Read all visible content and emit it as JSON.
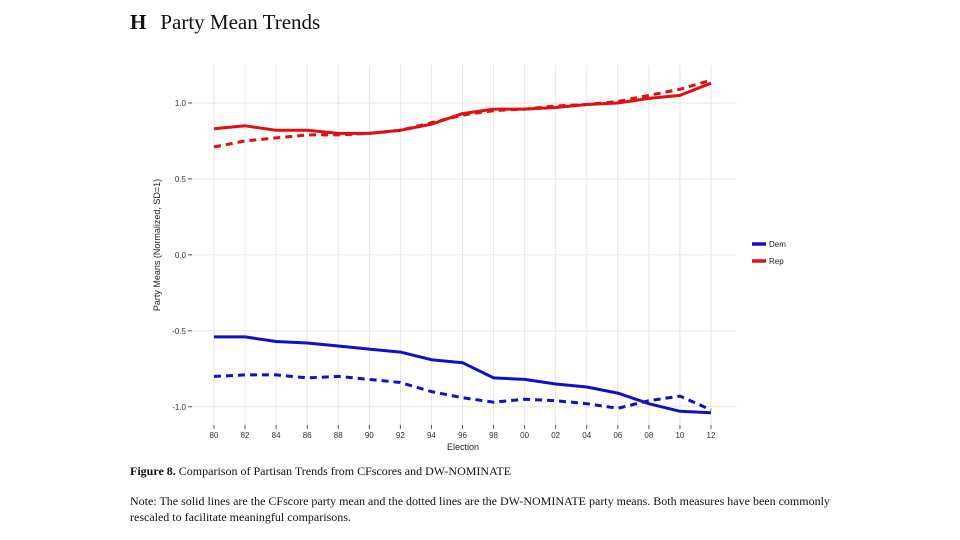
{
  "heading": {
    "letter": "H",
    "title": "Party Mean Trends"
  },
  "chart_data": {
    "type": "line",
    "title": "Party Mean Trends",
    "xlabel": "Election",
    "ylabel": "Party Means (Normalized, SD=1)",
    "categories": [
      "80",
      "82",
      "84",
      "86",
      "88",
      "90",
      "92",
      "94",
      "96",
      "98",
      "00",
      "02",
      "04",
      "06",
      "08",
      "10",
      "12"
    ],
    "yticks": [
      -1.0,
      -0.5,
      0.0,
      0.5,
      1.0
    ],
    "ytick_labels": [
      "-1.0",
      "-0.5",
      "0.0",
      "0.5",
      "1.0"
    ],
    "ylim": [
      -1.12,
      1.25
    ],
    "grid": true,
    "legend_position": "right",
    "legend": [
      {
        "name": "Dem",
        "color": "#1010c8"
      },
      {
        "name": "Rep",
        "color": "#e01010"
      }
    ],
    "series": [
      {
        "name": "Rep CFscore",
        "party": "Rep",
        "style": "solid",
        "color": "#e01010",
        "values": [
          0.83,
          0.85,
          0.82,
          0.82,
          0.8,
          0.8,
          0.82,
          0.86,
          0.93,
          0.96,
          0.96,
          0.97,
          0.99,
          1.0,
          1.03,
          1.05,
          1.13
        ]
      },
      {
        "name": "Rep DW-NOMINATE",
        "party": "Rep",
        "style": "dashed",
        "color": "#e01010",
        "values": [
          0.71,
          0.75,
          0.77,
          0.79,
          0.79,
          0.8,
          0.82,
          0.87,
          0.92,
          0.95,
          0.96,
          0.98,
          0.99,
          1.01,
          1.05,
          1.09,
          1.15
        ]
      },
      {
        "name": "Dem CFscore",
        "party": "Dem",
        "style": "solid",
        "color": "#1010c8",
        "values": [
          -0.54,
          -0.54,
          -0.57,
          -0.58,
          -0.6,
          -0.62,
          -0.64,
          -0.69,
          -0.71,
          -0.81,
          -0.82,
          -0.85,
          -0.87,
          -0.91,
          -0.98,
          -1.03,
          -1.04
        ]
      },
      {
        "name": "Dem DW-NOMINATE",
        "party": "Dem",
        "style": "dashed",
        "color": "#1010c8",
        "values": [
          -0.8,
          -0.79,
          -0.79,
          -0.81,
          -0.8,
          -0.82,
          -0.84,
          -0.9,
          -0.94,
          -0.97,
          -0.95,
          -0.96,
          -0.98,
          -1.01,
          -0.96,
          -0.93,
          -1.02
        ]
      }
    ]
  },
  "caption": {
    "label": "Figure 8.",
    "text": "Comparison of Partisan Trends from CFscores and DW-NOMINATE"
  },
  "note": "Note: The solid lines are the CFscore party mean and the dotted lines are the DW-NOMINATE party means. Both measures have been commonly rescaled to facilitate meaningful comparisons."
}
